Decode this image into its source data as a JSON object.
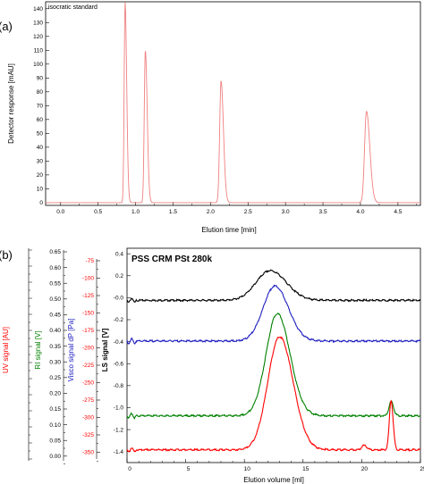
{
  "chart_data": [
    {
      "type": "line",
      "panel_label": "(a)",
      "legend": "isocratic standard",
      "xlabel": "Elution time [min]",
      "ylabel": "Detector response [mAU]",
      "xlim": [
        -0.2,
        4.8
      ],
      "ylim": [
        -2,
        145
      ],
      "x_ticks": [
        "0.0",
        "0.5",
        "1.0",
        "1.5",
        "2.0",
        "2.5",
        "3.0",
        "3.5",
        "4.0",
        "4.5"
      ],
      "y_ticks": [
        "0",
        "10",
        "20",
        "30",
        "40",
        "50",
        "60",
        "70",
        "80",
        "90",
        "100",
        "110",
        "120",
        "130",
        "140"
      ],
      "line_color": "#f08080",
      "peaks": [
        {
          "x": 0.86,
          "y": 145,
          "sigma": 0.012
        },
        {
          "x": 1.13,
          "y": 110,
          "sigma": 0.014
        },
        {
          "x": 2.14,
          "y": 88,
          "sigma": 0.018
        },
        {
          "x": 4.08,
          "y": 66,
          "sigma": 0.025
        }
      ]
    },
    {
      "type": "line",
      "panel_label": "(b)",
      "title": "PSS CRM PSt 280k",
      "xlabel": "Elution volume [ml]",
      "xlim": [
        0,
        25
      ],
      "x_ticks": [
        "0",
        "5",
        "10",
        "15",
        "20",
        "25"
      ],
      "axes": [
        {
          "label": "UV signal [AU]",
          "color": "#ff0000"
        },
        {
          "label": "RI signal [V]",
          "color": "#008000",
          "ticks": [
            "0.65",
            "0.60",
            "0.55",
            "0.50",
            "0.45",
            "0.40",
            "0.35",
            "0.30",
            "0.25",
            "0.20",
            "0.15",
            "0.10",
            "0.05",
            "0.00"
          ]
        },
        {
          "label": "Visco signal dP [Pa]",
          "color": "#2020c0",
          "ticks": [
            "-75",
            "-100",
            "-125",
            "-150",
            "-175",
            "-200",
            "-225",
            "-250",
            "-275",
            "-300",
            "-325",
            "-350"
          ]
        },
        {
          "label": "LS signal [V]",
          "color": "#000000",
          "ticks": [
            "0.4",
            "0.2",
            "-0.0",
            "-0.2",
            "-0.4",
            "-0.6",
            "-0.8",
            "-1.0",
            "-1.2",
            "-1.4"
          ],
          "ylim": [
            -1.5,
            0.45
          ]
        }
      ],
      "series": [
        {
          "color": "#000000",
          "baseline": -0.02,
          "peaks": [
            {
              "x": 12.2,
              "h": 0.27,
              "sigma": 1.2
            }
          ]
        },
        {
          "color": "#2020c0",
          "baseline": -0.39,
          "peaks": [
            {
              "x": 12.6,
              "h": 0.5,
              "sigma": 1.0
            }
          ]
        },
        {
          "color": "#008000",
          "baseline": -1.07,
          "peaks": [
            {
              "x": 12.8,
              "h": 0.93,
              "sigma": 0.95
            },
            {
              "x": 22.5,
              "h": 0.13,
              "sigma": 0.18
            }
          ]
        },
        {
          "color": "#ff0000",
          "baseline": -1.38,
          "peaks": [
            {
              "x": 13.0,
              "h": 1.03,
              "sigma": 1.0
            },
            {
              "x": 20.2,
              "h": 0.04,
              "sigma": 0.2
            },
            {
              "x": 22.5,
              "h": 0.45,
              "sigma": 0.15
            }
          ]
        }
      ]
    }
  ]
}
